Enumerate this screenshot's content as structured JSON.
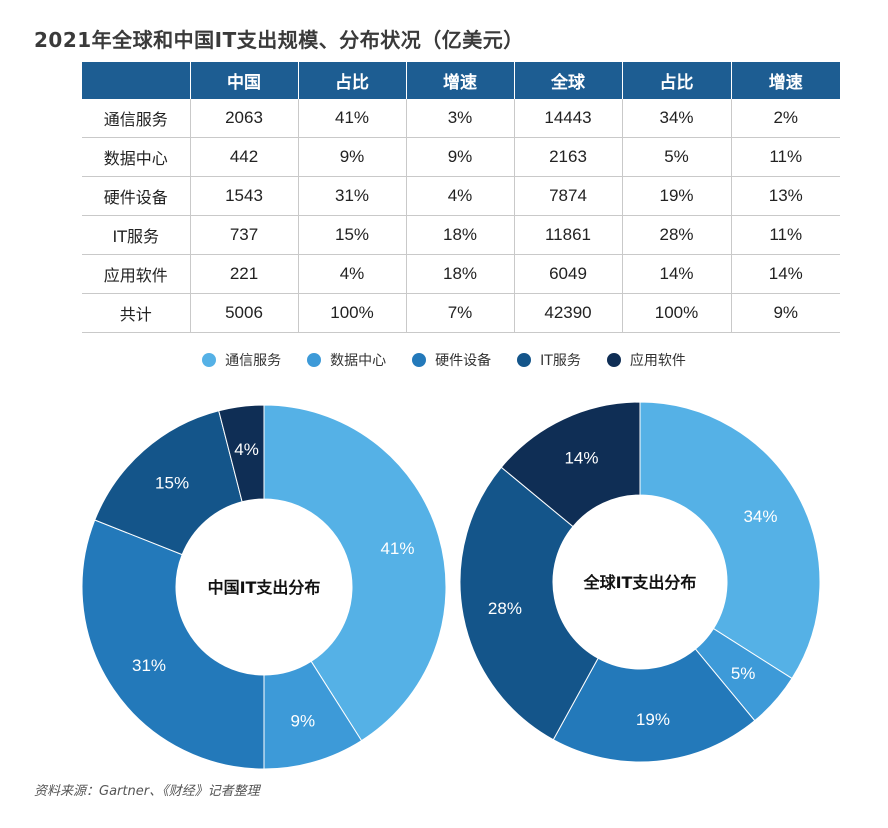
{
  "title": "2021年全球和中国IT支出规模、分布状况（亿美元）",
  "table": {
    "headers": [
      "",
      "中国",
      "占比",
      "增速",
      "全球",
      "占比",
      "增速"
    ],
    "rows": [
      [
        "通信服务",
        "2063",
        "41%",
        "3%",
        "14443",
        "34%",
        "2%"
      ],
      [
        "数据中心",
        "442",
        "9%",
        "9%",
        "2163",
        "5%",
        "11%"
      ],
      [
        "硬件设备",
        "1543",
        "31%",
        "4%",
        "7874",
        "19%",
        "13%"
      ],
      [
        "IT服务",
        "737",
        "15%",
        "18%",
        "11861",
        "28%",
        "11%"
      ],
      [
        "应用软件",
        "221",
        "4%",
        "18%",
        "6049",
        "14%",
        "14%"
      ],
      [
        "共计",
        "5006",
        "100%",
        "7%",
        "42390",
        "100%",
        "9%"
      ]
    ]
  },
  "legend": [
    {
      "label": "通信服务",
      "color": "#55b1e6"
    },
    {
      "label": "数据中心",
      "color": "#3d9ad8"
    },
    {
      "label": "硬件设备",
      "color": "#2379ba"
    },
    {
      "label": "IT服务",
      "color": "#14558a"
    },
    {
      "label": "应用软件",
      "color": "#0f2e55"
    }
  ],
  "chart_data": [
    {
      "type": "pie",
      "title": "中国IT支出分布",
      "categories": [
        "通信服务",
        "数据中心",
        "硬件设备",
        "IT服务",
        "应用软件"
      ],
      "values": [
        41,
        9,
        31,
        15,
        4
      ],
      "labels": [
        "41%",
        "9%",
        "31%",
        "15%",
        "4%"
      ],
      "donut": true
    },
    {
      "type": "pie",
      "title": "全球IT支出分布",
      "categories": [
        "通信服务",
        "数据中心",
        "硬件设备",
        "IT服务",
        "应用软件"
      ],
      "values": [
        34,
        5,
        19,
        28,
        14
      ],
      "labels": [
        "34%",
        "5%",
        "19%",
        "28%",
        "14%"
      ],
      "donut": true
    }
  ],
  "source": "资料来源：Gartner、《财经》记者整理"
}
